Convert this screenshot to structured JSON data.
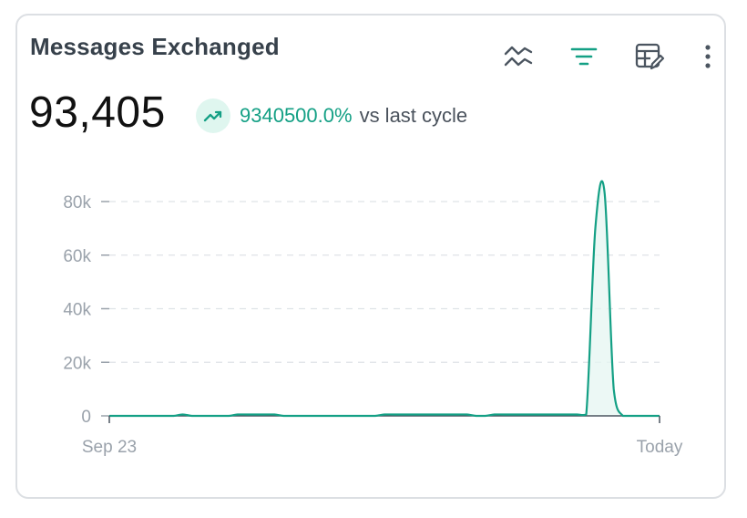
{
  "widget": {
    "title": "Messages Exchanged",
    "metric_value": "93,405",
    "trend": {
      "percent": "9340500.0%",
      "suffix": "vs last cycle",
      "direction": "up",
      "color": "#14a085"
    }
  },
  "toolbar": {
    "icons": [
      "compare-trend-icon",
      "filter-icon",
      "edit-table-icon",
      "more-options-icon"
    ],
    "accent_color": "#14a085"
  },
  "chart_data": {
    "type": "area",
    "title": "",
    "xlabel": "",
    "ylabel": "",
    "ylim": [
      0,
      80000
    ],
    "yticks": [
      0,
      20000,
      40000,
      60000,
      80000
    ],
    "ytick_labels": [
      "0",
      "20k",
      "40k",
      "60k",
      "80k"
    ],
    "xtick_labels": [
      "Sep 23",
      "Today"
    ],
    "grid": true,
    "x": [
      0,
      1,
      2,
      3,
      4,
      5,
      6,
      7,
      8,
      9,
      10,
      11,
      12,
      13,
      14,
      15,
      16,
      17,
      18,
      19,
      20,
      21,
      22,
      23,
      24,
      25,
      26,
      27,
      28,
      29,
      30,
      31,
      32,
      33,
      34,
      35,
      36,
      37,
      38,
      39,
      40,
      41,
      42,
      43,
      44,
      45,
      46,
      47,
      48,
      49,
      50,
      51,
      52,
      53,
      54,
      55,
      56,
      57,
      58,
      59,
      60
    ],
    "series": [
      {
        "color": "#14a085",
        "values": [
          0,
          0,
          0,
          0,
          0,
          0,
          0,
          0,
          500,
          0,
          0,
          0,
          0,
          0,
          500,
          500,
          500,
          500,
          500,
          0,
          0,
          0,
          0,
          0,
          0,
          0,
          0,
          0,
          0,
          0,
          500,
          500,
          500,
          500,
          500,
          500,
          500,
          500,
          500,
          500,
          0,
          0,
          500,
          500,
          500,
          500,
          500,
          500,
          500,
          500,
          500,
          500,
          500,
          70000,
          83500,
          10000,
          0,
          0,
          0,
          0,
          0
        ]
      }
    ]
  }
}
